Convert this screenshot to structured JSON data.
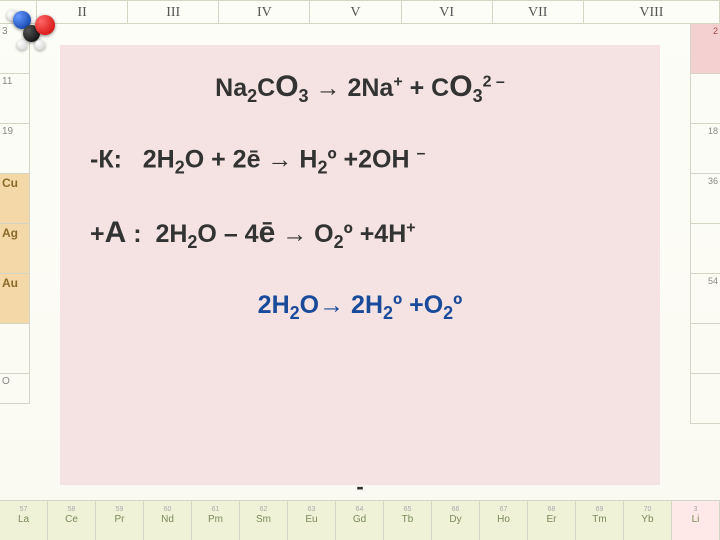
{
  "background": {
    "header_roman": [
      "II",
      "III",
      "IV",
      "V",
      "VI",
      "VII",
      "VIII"
    ],
    "left_column": [
      "3",
      "11",
      "19",
      "Cu",
      "Ag",
      "Au",
      "",
      "O"
    ],
    "right_column": [
      "2",
      "",
      "18",
      "36",
      "",
      "54",
      "",
      ""
    ],
    "bottom_row": [
      "La",
      "Ce",
      "Pr",
      "Nd",
      "Pm",
      "Sm",
      "Eu",
      "Gd",
      "Tb",
      "Dy",
      "Ho",
      "Er",
      "Tm",
      "Yb",
      "Li"
    ],
    "bottom_nums": [
      "57",
      "58",
      "59",
      "60",
      "61",
      "62",
      "63",
      "64",
      "65",
      "66",
      "67",
      "68",
      "69",
      "70",
      "3"
    ]
  },
  "equations": {
    "line1_html": "Na<sub>2</sub>C<span class='big'>O</span><sub>3</sub> → 2Na<sup>+</sup> + C<span class='big'>O</span><sub>3</sub><sup>2 –</sup>",
    "line2_html": "-К:&nbsp;&nbsp;&nbsp;2H<sub>2</sub>O + 2ē → H<sub>2</sub>º +2OH <sup>–</sup>",
    "line3_html": "+<span class='big'>А</span> :&nbsp;&nbsp;2H<sub>2</sub>O – 4<span class='big'>ē</span> → O<sub>2</sub>º +4H<sup>+</sup>",
    "line4_html": "2H<sub>2</sub>O→ 2H<sub>2</sub>º +O<sub>2</sub>º"
  },
  "styles": {
    "panel_bg": "#f5e3e3",
    "text_color": "#333333",
    "blue_color": "#1a4a9a",
    "font_size_main": 25,
    "font_size_sub": 18,
    "font_size_sup": 16
  }
}
